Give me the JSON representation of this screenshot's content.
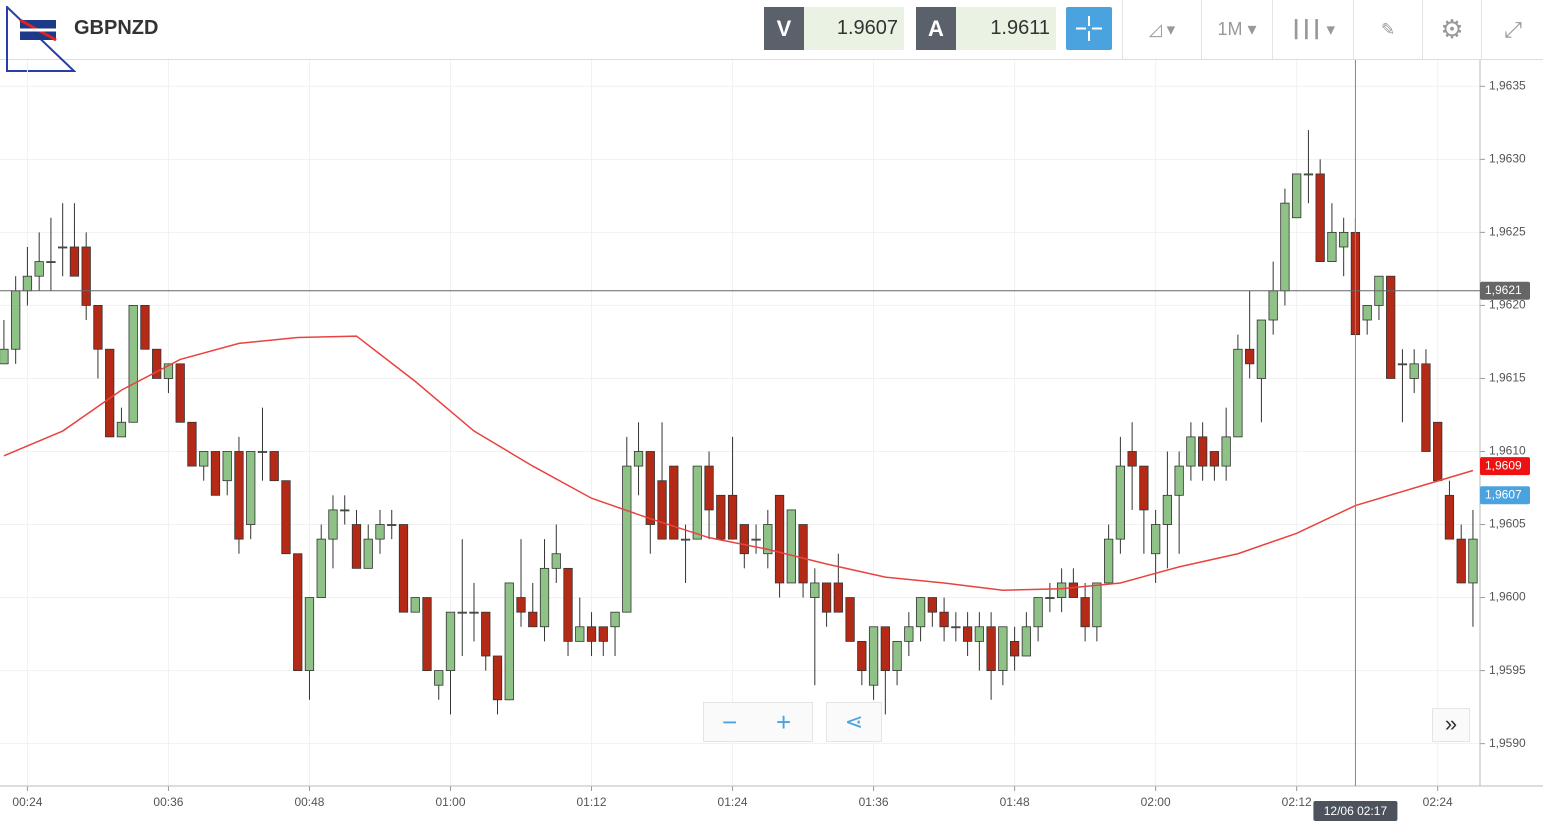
{
  "header": {
    "symbol": "GBPNZD",
    "bid_label": "V",
    "bid": "1.9607",
    "ask_label": "A",
    "ask": "1.9611",
    "period": "1M"
  },
  "chart_data": {
    "type": "candlestick",
    "x": [
      "00:22",
      "00:23",
      "00:24",
      "00:25",
      "00:26",
      "00:27",
      "00:28",
      "00:29",
      "00:30",
      "00:31",
      "00:32",
      "00:33",
      "00:34",
      "00:35",
      "00:36",
      "00:37",
      "00:38",
      "00:39",
      "00:40",
      "00:41",
      "00:42",
      "00:43",
      "00:44",
      "00:45",
      "00:46",
      "00:47",
      "00:48",
      "00:49",
      "00:50",
      "00:51",
      "00:52",
      "00:53",
      "00:54",
      "00:55",
      "00:56",
      "00:57",
      "00:58",
      "00:59",
      "01:00",
      "01:01",
      "01:02",
      "01:03",
      "01:04",
      "01:05",
      "01:06",
      "01:07",
      "01:08",
      "01:09",
      "01:10",
      "01:11",
      "01:12",
      "01:13",
      "01:14",
      "01:15",
      "01:16",
      "01:17",
      "01:18",
      "01:19",
      "01:20",
      "01:21",
      "01:22",
      "01:23",
      "01:24",
      "01:25",
      "01:26",
      "01:27",
      "01:28",
      "01:29",
      "01:30",
      "01:31",
      "01:32",
      "01:33",
      "01:34",
      "01:35",
      "01:36",
      "01:37",
      "01:38",
      "01:39",
      "01:40",
      "01:41",
      "01:42",
      "01:43",
      "01:44",
      "01:45",
      "01:46",
      "01:47",
      "01:48",
      "01:49",
      "01:50",
      "01:51",
      "01:52",
      "01:53",
      "01:54",
      "01:55",
      "01:56",
      "01:57",
      "01:58",
      "01:59",
      "02:00",
      "02:01",
      "02:02",
      "02:03",
      "02:04",
      "02:05",
      "02:06",
      "02:07",
      "02:08",
      "02:09",
      "02:10",
      "02:11",
      "02:12",
      "02:13",
      "02:14",
      "02:15",
      "02:16",
      "02:17",
      "02:18",
      "02:19",
      "02:20",
      "02:21",
      "02:22",
      "02:23",
      "02:24",
      "02:25",
      "02:26",
      "02:27"
    ],
    "open": [
      1.9616,
      1.9617,
      1.9621,
      1.9622,
      1.9623,
      1.9624,
      1.9624,
      1.9624,
      1.962,
      1.9617,
      1.9611,
      1.9612,
      1.962,
      1.9617,
      1.9615,
      1.9616,
      1.9612,
      1.9609,
      1.961,
      1.9608,
      1.961,
      1.9605,
      1.961,
      1.961,
      1.9608,
      1.9603,
      1.9595,
      1.96,
      1.9604,
      1.9606,
      1.9605,
      1.9602,
      1.9604,
      1.9605,
      1.9605,
      1.9599,
      1.96,
      1.9594,
      1.9595,
      1.9599,
      1.9599,
      1.9599,
      1.9596,
      1.9593,
      1.96,
      1.9599,
      1.9598,
      1.9602,
      1.9602,
      1.9597,
      1.9598,
      1.9598,
      1.9598,
      1.9599,
      1.9609,
      1.961,
      1.9608,
      1.9609,
      1.9604,
      1.9604,
      1.9609,
      1.9607,
      1.9607,
      1.9605,
      1.9604,
      1.9603,
      1.9607,
      1.9601,
      1.9605,
      1.96,
      1.9601,
      1.9601,
      1.96,
      1.9597,
      1.9594,
      1.9598,
      1.9595,
      1.9597,
      1.9598,
      1.96,
      1.9599,
      1.9598,
      1.9598,
      1.9597,
      1.9598,
      1.9595,
      1.9597,
      1.9596,
      1.9598,
      1.96,
      1.96,
      1.9601,
      1.96,
      1.9598,
      1.9601,
      1.9604,
      1.961,
      1.9609,
      1.9603,
      1.9605,
      1.9607,
      1.9609,
      1.9611,
      1.961,
      1.9609,
      1.9611,
      1.9617,
      1.9615,
      1.9619,
      1.9621,
      1.9626,
      1.9629,
      1.9629,
      1.9623,
      1.9624,
      1.9625,
      1.9619,
      1.962,
      1.9622,
      1.9616,
      1.9615,
      1.9616,
      1.9612,
      1.9607,
      1.9604,
      1.9601
    ],
    "high": [
      1.9619,
      1.9622,
      1.9624,
      1.9625,
      1.9626,
      1.9627,
      1.9627,
      1.9625,
      1.962,
      1.9617,
      1.9613,
      1.962,
      1.962,
      1.9617,
      1.9616,
      1.9616,
      1.9612,
      1.961,
      1.961,
      1.961,
      1.9611,
      1.961,
      1.9613,
      1.961,
      1.9608,
      1.9603,
      1.96,
      1.9605,
      1.9607,
      1.9607,
      1.9606,
      1.9605,
      1.9606,
      1.9606,
      1.9605,
      1.96,
      1.96,
      1.9595,
      1.9599,
      1.9604,
      1.9601,
      1.9599,
      1.9596,
      1.9601,
      1.9604,
      1.9601,
      1.9604,
      1.9605,
      1.9602,
      1.96,
      1.9599,
      1.9598,
      1.9599,
      1.9611,
      1.9612,
      1.961,
      1.9612,
      1.9609,
      1.9605,
      1.9609,
      1.961,
      1.9607,
      1.9611,
      1.9605,
      1.9605,
      1.9606,
      1.9607,
      1.9606,
      1.9605,
      1.9602,
      1.9601,
      1.9603,
      1.96,
      1.9597,
      1.9598,
      1.9598,
      1.9597,
      1.9599,
      1.96,
      1.96,
      1.96,
      1.9599,
      1.9599,
      1.9599,
      1.9599,
      1.9598,
      1.9598,
      1.9599,
      1.96,
      1.9601,
      1.9602,
      1.9602,
      1.9601,
      1.9601,
      1.9605,
      1.9611,
      1.9612,
      1.9609,
      1.9606,
      1.961,
      1.961,
      1.9612,
      1.9612,
      1.961,
      1.9613,
      1.9618,
      1.9621,
      1.9619,
      1.9623,
      1.9628,
      1.9629,
      1.9632,
      1.963,
      1.9627,
      1.9626,
      1.9626,
      1.962,
      1.9622,
      1.9622,
      1.9617,
      1.9617,
      1.9617,
      1.9612,
      1.9608,
      1.9605,
      1.9606
    ],
    "low": [
      1.9616,
      1.9616,
      1.962,
      1.9621,
      1.9621,
      1.9622,
      1.9622,
      1.9619,
      1.9615,
      1.9611,
      1.9611,
      1.9612,
      1.9617,
      1.9615,
      1.9614,
      1.9612,
      1.9609,
      1.9608,
      1.9607,
      1.9607,
      1.9603,
      1.9604,
      1.9608,
      1.9608,
      1.9603,
      1.9595,
      1.9593,
      1.96,
      1.9602,
      1.9605,
      1.9602,
      1.9602,
      1.9603,
      1.9604,
      1.9599,
      1.9599,
      1.9595,
      1.9593,
      1.9592,
      1.9596,
      1.9597,
      1.9595,
      1.9592,
      1.9593,
      1.9598,
      1.9598,
      1.9597,
      1.9601,
      1.9596,
      1.9597,
      1.9596,
      1.9596,
      1.9596,
      1.9599,
      1.9607,
      1.9603,
      1.9604,
      1.9604,
      1.9601,
      1.9604,
      1.9604,
      1.9604,
      1.9604,
      1.9602,
      1.9603,
      1.9602,
      1.96,
      1.9601,
      1.96,
      1.9594,
      1.9598,
      1.9599,
      1.9597,
      1.9594,
      1.9593,
      1.9592,
      1.9594,
      1.9596,
      1.9597,
      1.9598,
      1.9597,
      1.9597,
      1.9596,
      1.9595,
      1.9593,
      1.9594,
      1.9595,
      1.9596,
      1.9597,
      1.9599,
      1.9599,
      1.96,
      1.9597,
      1.9597,
      1.9601,
      1.9603,
      1.9606,
      1.9603,
      1.9601,
      1.9602,
      1.9603,
      1.9608,
      1.9608,
      1.9608,
      1.9608,
      1.9611,
      1.9615,
      1.9612,
      1.9618,
      1.962,
      1.9626,
      1.9627,
      1.9623,
      1.9623,
      1.9622,
      1.9618,
      1.9618,
      1.9619,
      1.9615,
      1.9612,
      1.9614,
      1.961,
      1.9608,
      1.9604,
      1.9601,
      1.9598
    ],
    "close": [
      1.9617,
      1.9621,
      1.9622,
      1.9623,
      1.9623,
      1.9624,
      1.9622,
      1.962,
      1.9617,
      1.9611,
      1.9612,
      1.962,
      1.9617,
      1.9615,
      1.9616,
      1.9612,
      1.9609,
      1.961,
      1.9607,
      1.961,
      1.9604,
      1.961,
      1.961,
      1.9608,
      1.9603,
      1.9595,
      1.96,
      1.9604,
      1.9606,
      1.9606,
      1.9602,
      1.9604,
      1.9605,
      1.9605,
      1.9599,
      1.96,
      1.9595,
      1.9595,
      1.9599,
      1.9599,
      1.9599,
      1.9596,
      1.9593,
      1.9601,
      1.9599,
      1.9598,
      1.9602,
      1.9603,
      1.9597,
      1.9598,
      1.9597,
      1.9597,
      1.9599,
      1.9609,
      1.961,
      1.9605,
      1.9604,
      1.9604,
      1.9604,
      1.9609,
      1.9606,
      1.9604,
      1.9604,
      1.9603,
      1.9604,
      1.9605,
      1.9601,
      1.9606,
      1.9601,
      1.9601,
      1.9599,
      1.9599,
      1.9597,
      1.9595,
      1.9598,
      1.9595,
      1.9597,
      1.9598,
      1.96,
      1.9599,
      1.9598,
      1.9598,
      1.9597,
      1.9598,
      1.9595,
      1.9598,
      1.9596,
      1.9598,
      1.96,
      1.96,
      1.9601,
      1.96,
      1.9598,
      1.9601,
      1.9604,
      1.9609,
      1.9609,
      1.9606,
      1.9605,
      1.9607,
      1.9609,
      1.9611,
      1.9609,
      1.9609,
      1.9611,
      1.9617,
      1.9616,
      1.9619,
      1.9621,
      1.9627,
      1.9629,
      1.9629,
      1.9623,
      1.9625,
      1.9625,
      1.9618,
      1.962,
      1.9622,
      1.9615,
      1.9616,
      1.9616,
      1.961,
      1.9608,
      1.9604,
      1.9601,
      1.9604
    ],
    "up_color": "#8fc287",
    "down_color": "#b52a16",
    "moving_average": {
      "color": "#e8433f",
      "x": [
        "00:22",
        "00:27",
        "00:32",
        "00:37",
        "00:42",
        "00:47",
        "00:52",
        "00:57",
        "01:02",
        "01:07",
        "01:12",
        "01:17",
        "01:22",
        "01:27",
        "01:32",
        "01:37",
        "01:42",
        "01:47",
        "01:52",
        "01:57",
        "02:02",
        "02:07",
        "02:12",
        "02:17",
        "02:22",
        "02:27"
      ],
      "values": [
        1.96097,
        1.96114,
        1.96142,
        1.96163,
        1.96174,
        1.96178,
        1.96179,
        1.96148,
        1.96114,
        1.9609,
        1.96068,
        1.96054,
        1.96041,
        1.96033,
        1.96023,
        1.96014,
        1.9601,
        1.96005,
        1.96006,
        1.9601,
        1.96021,
        1.9603,
        1.96044,
        1.96063,
        1.96075,
        1.96087
      ]
    },
    "price_lines": [
      {
        "value": 1.9621,
        "label": "1,9621",
        "color": "#666666"
      },
      {
        "value": 1.9609,
        "label": "1,9609",
        "color": "#ee1111"
      },
      {
        "value": 1.9607,
        "label": "1,9607",
        "color": "#4aa3df"
      }
    ],
    "crosshair": {
      "x": "02:17",
      "label": "12/06 02:17"
    },
    "xlim": [
      "00:21:40",
      "02:27:36"
    ],
    "xticks": [
      "00:24",
      "00:36",
      "00:48",
      "01:00",
      "01:12",
      "01:24",
      "01:36",
      "01:48",
      "02:00",
      "02:12",
      "02:24"
    ],
    "ylim": [
      1.95871,
      1.96368
    ],
    "yticks": [
      {
        "value": 1.959,
        "label": "1,9590"
      },
      {
        "value": 1.9595,
        "label": "1,9595"
      },
      {
        "value": 1.96,
        "label": "1,9600"
      },
      {
        "value": 1.9605,
        "label": "1,9605"
      },
      {
        "value": 1.961,
        "label": "1,9610"
      },
      {
        "value": 1.9615,
        "label": "1,9615"
      },
      {
        "value": 1.962,
        "label": "1,9620"
      },
      {
        "value": 1.9625,
        "label": "1,9625"
      },
      {
        "value": 1.963,
        "label": "1,9630"
      },
      {
        "value": 1.9635,
        "label": "1,9635"
      }
    ],
    "grid": true
  }
}
